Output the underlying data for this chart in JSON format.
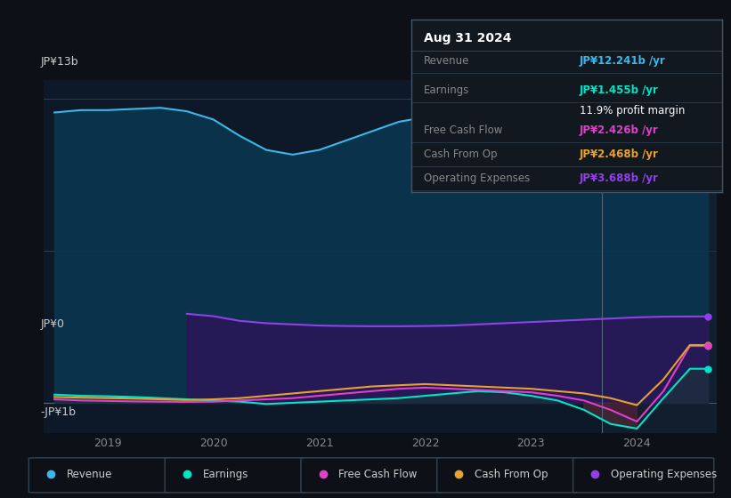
{
  "background_color": "#0d1117",
  "plot_bg_color": "#0d1928",
  "y_label_13b": "JP¥13b",
  "y_label_0": "JP¥0",
  "y_label_neg1b": "-JP¥1b",
  "revenue_color": "#3bb8e8",
  "earnings_color": "#00e5c5",
  "fcf_color": "#e040c8",
  "cashfromop_color": "#e8a030",
  "opex_color": "#9040e8",
  "info_box": {
    "title": "Aug 31 2024",
    "revenue_label": "Revenue",
    "revenue_value": "JP¥12.241b /yr",
    "revenue_color": "#3bb8e8",
    "earnings_label": "Earnings",
    "earnings_value": "JP¥1.455b /yr",
    "earnings_color": "#00e5c5",
    "profit_margin": "11.9% profit margin",
    "fcf_label": "Free Cash Flow",
    "fcf_value": "JP¥2.426b /yr",
    "fcf_color": "#e040c8",
    "cashop_label": "Cash From Op",
    "cashop_value": "JP¥2.468b /yr",
    "cashop_color": "#e8a030",
    "opex_label": "Operating Expenses",
    "opex_value": "JP¥3.688b /yr",
    "opex_color": "#9040e8"
  },
  "legend_items": [
    {
      "label": "Revenue",
      "color": "#3bb8e8"
    },
    {
      "label": "Earnings",
      "color": "#00e5c5"
    },
    {
      "label": "Free Cash Flow",
      "color": "#e040c8"
    },
    {
      "label": "Cash From Op",
      "color": "#e8a030"
    },
    {
      "label": "Operating Expenses",
      "color": "#9040e8"
    }
  ],
  "revenue_data": {
    "x": [
      2018.5,
      2018.75,
      2019.0,
      2019.25,
      2019.5,
      2019.75,
      2020.0,
      2020.25,
      2020.5,
      2020.75,
      2021.0,
      2021.25,
      2021.5,
      2021.75,
      2022.0,
      2022.25,
      2022.5,
      2022.75,
      2023.0,
      2023.25,
      2023.5,
      2023.75,
      2024.0,
      2024.25,
      2024.5,
      2024.67
    ],
    "y": [
      12400000000,
      12500000000,
      12500000000,
      12550000000,
      12600000000,
      12450000000,
      12100000000,
      11400000000,
      10800000000,
      10600000000,
      10800000000,
      11200000000,
      11600000000,
      12000000000,
      12200000000,
      12300000000,
      12400000000,
      12350000000,
      12300000000,
      12200000000,
      12100000000,
      12150000000,
      12200000000,
      12250000000,
      12241000000,
      12241000000
    ]
  },
  "earnings_data": {
    "x": [
      2018.5,
      2018.75,
      2019.0,
      2019.25,
      2019.5,
      2019.75,
      2020.0,
      2020.25,
      2020.5,
      2020.75,
      2021.0,
      2021.25,
      2021.5,
      2021.75,
      2022.0,
      2022.25,
      2022.5,
      2022.75,
      2023.0,
      2023.25,
      2023.5,
      2023.75,
      2024.0,
      2024.25,
      2024.5,
      2024.67
    ],
    "y": [
      350000000,
      300000000,
      280000000,
      250000000,
      200000000,
      150000000,
      100000000,
      50000000,
      -50000000,
      0,
      50000000,
      100000000,
      150000000,
      200000000,
      300000000,
      400000000,
      500000000,
      450000000,
      300000000,
      100000000,
      -300000000,
      -900000000,
      -1100000000,
      200000000,
      1455000000,
      1455000000
    ]
  },
  "fcf_data": {
    "x": [
      2018.5,
      2018.75,
      2019.0,
      2019.25,
      2019.5,
      2019.75,
      2020.0,
      2020.25,
      2020.5,
      2020.75,
      2021.0,
      2021.25,
      2021.5,
      2021.75,
      2022.0,
      2022.25,
      2022.5,
      2022.75,
      2023.0,
      2023.25,
      2023.5,
      2023.75,
      2024.0,
      2024.25,
      2024.5,
      2024.67
    ],
    "y": [
      150000000,
      100000000,
      80000000,
      60000000,
      50000000,
      40000000,
      50000000,
      100000000,
      150000000,
      200000000,
      300000000,
      400000000,
      500000000,
      600000000,
      650000000,
      600000000,
      550000000,
      500000000,
      450000000,
      300000000,
      100000000,
      -300000000,
      -800000000,
      500000000,
      2426000000,
      2426000000
    ]
  },
  "cashop_data": {
    "x": [
      2018.5,
      2018.75,
      2019.0,
      2019.25,
      2019.5,
      2019.75,
      2020.0,
      2020.25,
      2020.5,
      2020.75,
      2021.0,
      2021.25,
      2021.5,
      2021.75,
      2022.0,
      2022.25,
      2022.5,
      2022.75,
      2023.0,
      2023.25,
      2023.5,
      2023.75,
      2024.0,
      2024.25,
      2024.5,
      2024.67
    ],
    "y": [
      250000000,
      220000000,
      200000000,
      180000000,
      150000000,
      120000000,
      150000000,
      200000000,
      300000000,
      400000000,
      500000000,
      600000000,
      700000000,
      750000000,
      800000000,
      750000000,
      700000000,
      650000000,
      600000000,
      500000000,
      400000000,
      200000000,
      -100000000,
      1000000000,
      2468000000,
      2468000000
    ]
  },
  "opex_data": {
    "x": [
      2019.75,
      2020.0,
      2020.25,
      2020.5,
      2020.75,
      2021.0,
      2021.25,
      2021.5,
      2021.75,
      2022.0,
      2022.25,
      2022.5,
      2022.75,
      2023.0,
      2023.25,
      2023.5,
      2023.75,
      2024.0,
      2024.25,
      2024.5,
      2024.67
    ],
    "y": [
      3800000000,
      3700000000,
      3500000000,
      3400000000,
      3350000000,
      3300000000,
      3280000000,
      3270000000,
      3270000000,
      3280000000,
      3300000000,
      3350000000,
      3400000000,
      3450000000,
      3500000000,
      3550000000,
      3600000000,
      3650000000,
      3680000000,
      3688000000,
      3688000000
    ]
  },
  "vertical_line_x": 2023.67,
  "xlim": [
    2018.4,
    2024.75
  ],
  "ylim": [
    -1300000000,
    13800000000
  ],
  "xticks": [
    2019,
    2020,
    2021,
    2022,
    2023,
    2024
  ],
  "xtick_labels": [
    "2019",
    "2020",
    "2021",
    "2022",
    "2023",
    "2024"
  ],
  "gridline_y_top": 13000000000,
  "gridline_y_mid": 6500000000,
  "gridline_y_zero": 0
}
